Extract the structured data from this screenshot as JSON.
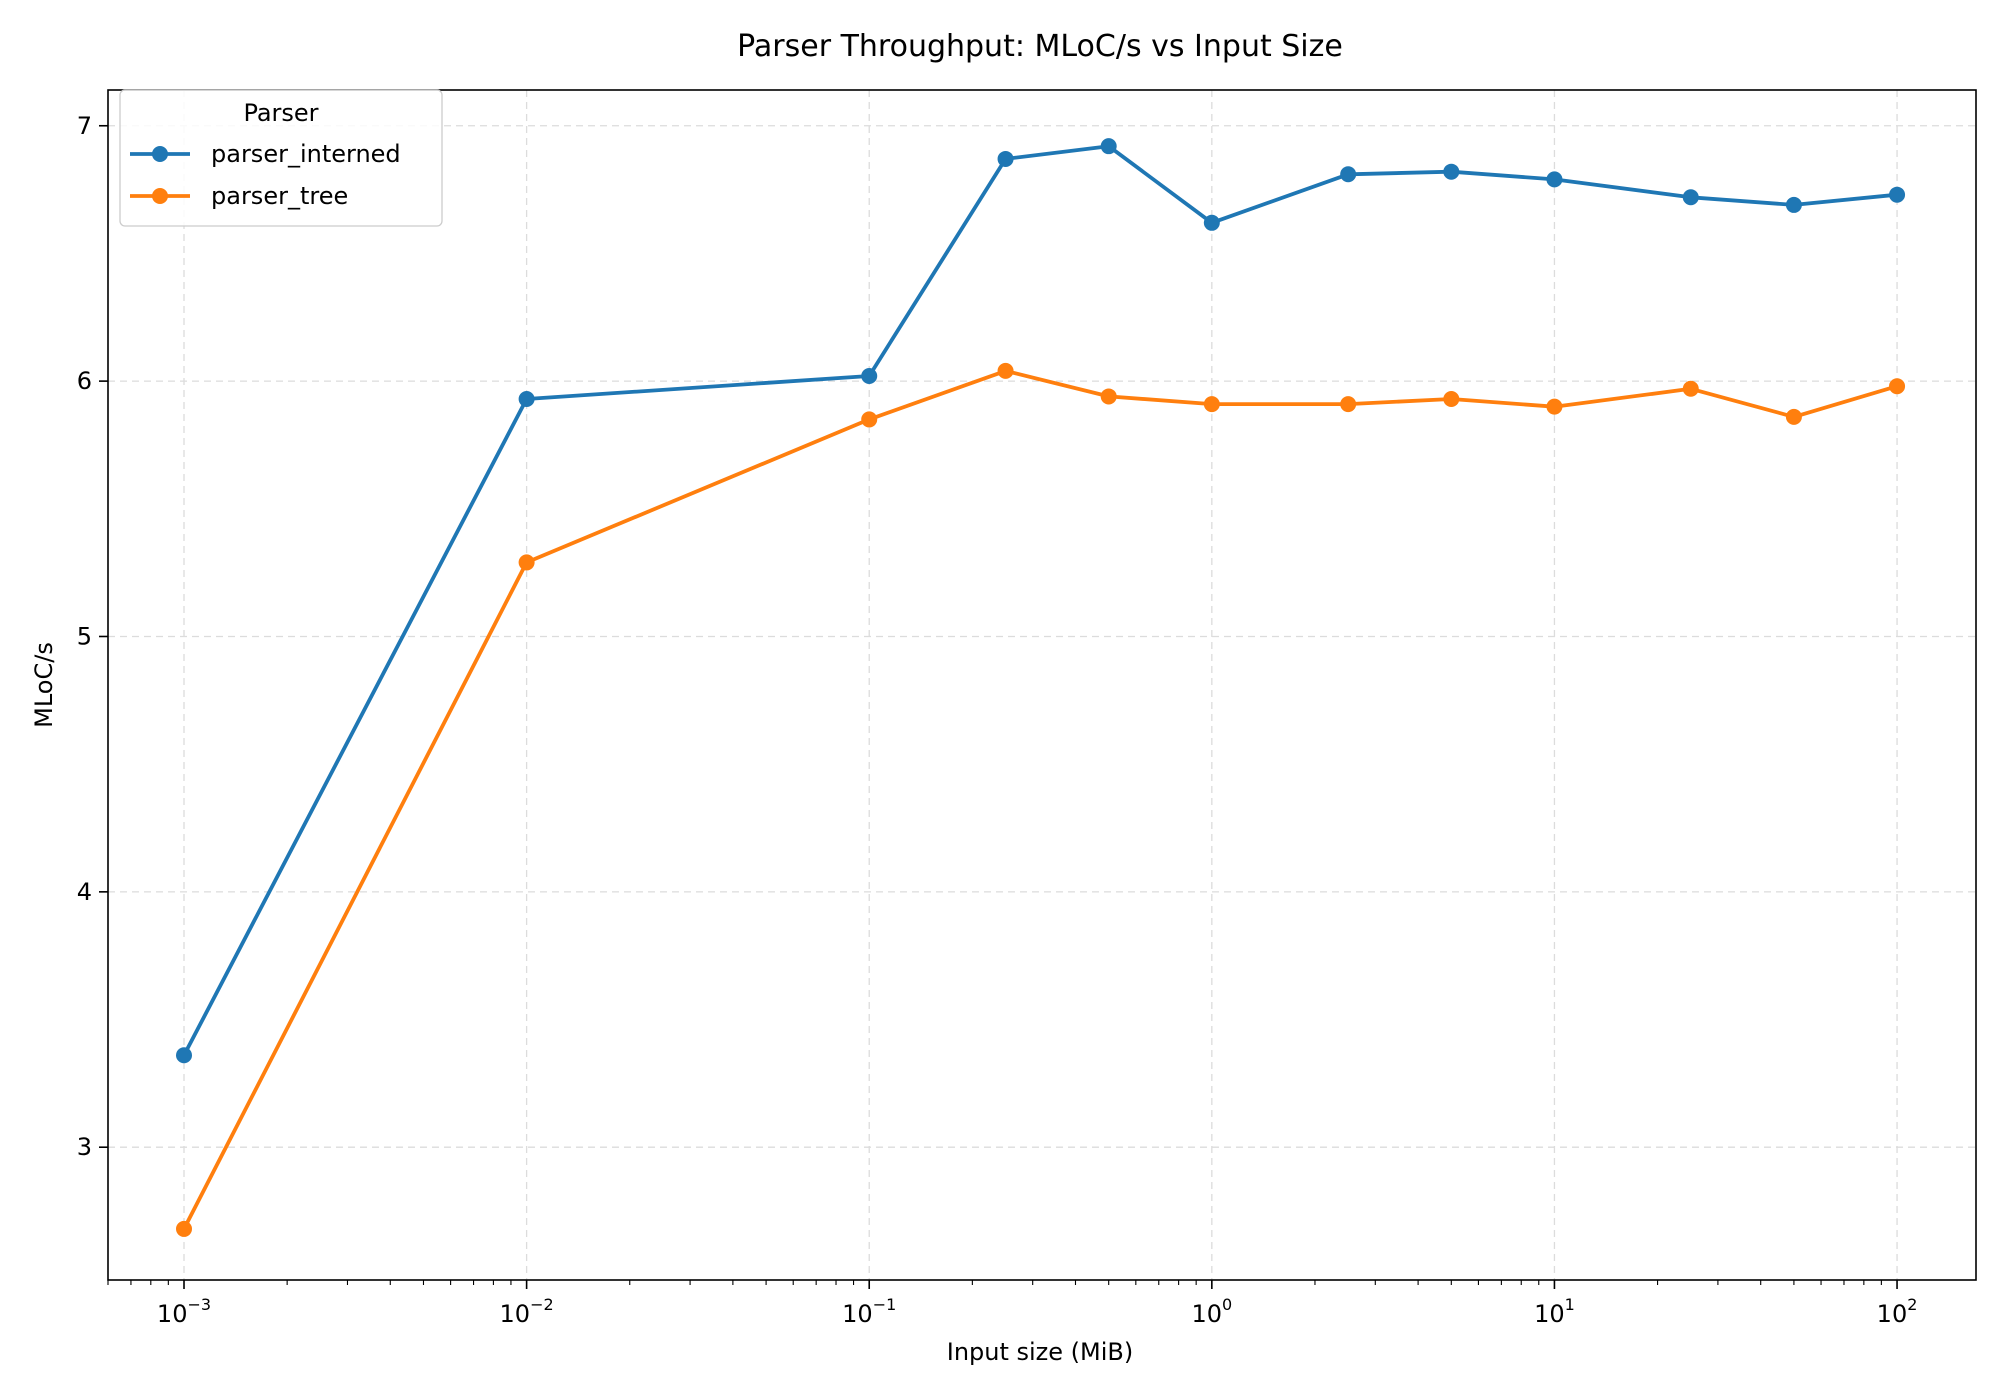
{
  "chart_data": {
    "type": "line",
    "title": "Parser Throughput: MLoC/s vs Input Size",
    "xlabel": "Input size (MiB)",
    "ylabel": "MLoC/s",
    "xscale": "log",
    "xlim": [
      0.0006,
      170
    ],
    "ylim": [
      2.48,
      7.14
    ],
    "grid": true,
    "x_ticks": [
      {
        "base": "10",
        "exp": "−3",
        "value": 0.001
      },
      {
        "base": "10",
        "exp": "−2",
        "value": 0.01
      },
      {
        "base": "10",
        "exp": "−1",
        "value": 0.1
      },
      {
        "base": "10",
        "exp": "0",
        "value": 1
      },
      {
        "base": "10",
        "exp": "1",
        "value": 10
      },
      {
        "base": "10",
        "exp": "2",
        "value": 100
      }
    ],
    "y_ticks": [
      {
        "label": "3",
        "value": 3
      },
      {
        "label": "4",
        "value": 4
      },
      {
        "label": "5",
        "value": 5
      },
      {
        "label": "6",
        "value": 6
      },
      {
        "label": "7",
        "value": 7
      }
    ],
    "x": [
      0.001,
      0.01,
      0.1,
      0.25,
      0.5,
      1,
      2.5,
      5,
      10,
      25,
      50,
      100
    ],
    "legend": {
      "title": "Parser",
      "location": "upper-left"
    },
    "series": [
      {
        "name": "parser_interned",
        "color": "#1f77b4",
        "values": [
          3.36,
          5.93,
          6.02,
          6.87,
          6.92,
          6.62,
          6.81,
          6.82,
          6.79,
          6.72,
          6.69,
          6.73
        ]
      },
      {
        "name": "parser_tree",
        "color": "#ff7f0e",
        "values": [
          2.68,
          5.29,
          5.85,
          6.04,
          5.94,
          5.91,
          5.91,
          5.93,
          5.9,
          5.97,
          5.86,
          5.98
        ]
      }
    ]
  }
}
